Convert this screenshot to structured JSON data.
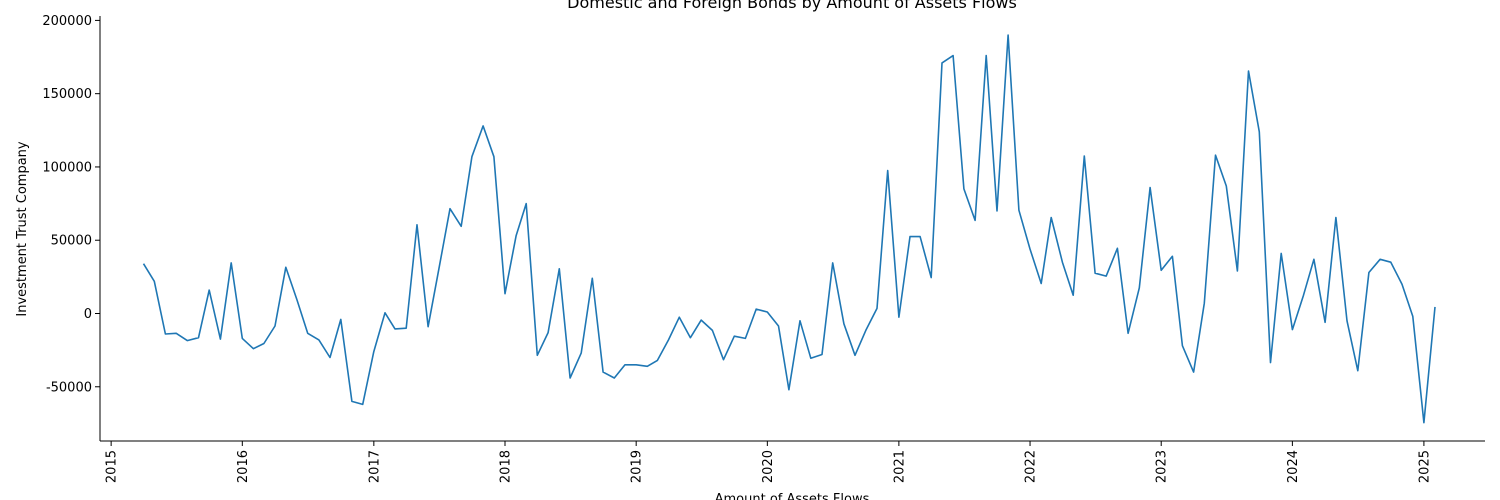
{
  "chart_data": {
    "type": "line",
    "title": "Domestic and Foreign Bonds by Amount of Assets Flows",
    "xlabel": "Amount of Assets Flows",
    "ylabel": "Investment Trust Company",
    "xlim": [
      "2014-12-01",
      "2025-06-20"
    ],
    "ylim": [
      -87000,
      203000
    ],
    "x_ticks": [
      "2015",
      "2016",
      "2017",
      "2018",
      "2019",
      "2020",
      "2021",
      "2022",
      "2023",
      "2024",
      "2025"
    ],
    "y_ticks": [
      -50000,
      0,
      50000,
      100000,
      150000,
      200000
    ],
    "grid": false,
    "line_color": "#1f77b4",
    "series": [
      {
        "x": [
          "2015-04",
          "2015-05",
          "2015-06",
          "2015-07",
          "2015-08",
          "2015-09",
          "2015-10",
          "2015-11",
          "2015-12",
          "2016-01",
          "2016-02",
          "2016-03",
          "2016-04",
          "2016-05",
          "2016-06",
          "2016-07",
          "2016-08",
          "2016-09",
          "2016-10",
          "2016-11",
          "2016-12",
          "2017-01",
          "2017-02",
          "2017-03",
          "2017-04",
          "2017-05",
          "2017-06",
          "2017-07",
          "2017-08",
          "2017-09",
          "2017-10",
          "2017-11",
          "2017-12",
          "2018-01",
          "2018-02",
          "2018-03",
          "2018-04",
          "2018-05",
          "2018-06",
          "2018-07",
          "2018-08",
          "2018-09",
          "2018-10",
          "2018-11",
          "2018-12",
          "2019-01",
          "2019-02",
          "2019-03",
          "2019-04",
          "2019-05",
          "2019-06",
          "2019-07",
          "2019-08",
          "2019-09",
          "2019-10",
          "2019-11",
          "2019-12",
          "2020-01",
          "2020-02",
          "2020-03",
          "2020-04",
          "2020-05",
          "2020-06",
          "2020-07",
          "2020-08",
          "2020-09",
          "2020-10",
          "2020-11",
          "2020-12",
          "2021-01",
          "2021-02",
          "2021-03",
          "2021-04",
          "2021-05",
          "2021-06",
          "2021-07",
          "2021-08",
          "2021-09",
          "2021-10",
          "2021-11",
          "2021-12",
          "2022-01",
          "2022-02",
          "2022-03",
          "2022-04",
          "2022-05",
          "2022-06",
          "2022-07",
          "2022-08",
          "2022-09",
          "2022-10",
          "2022-11",
          "2022-12",
          "2023-01",
          "2023-02",
          "2023-03",
          "2023-04",
          "2023-05",
          "2023-06",
          "2023-07",
          "2023-08",
          "2023-09",
          "2023-10",
          "2023-11",
          "2023-12",
          "2024-01",
          "2024-02",
          "2024-03",
          "2024-04",
          "2024-05",
          "2024-06",
          "2024-07",
          "2024-08",
          "2024-09",
          "2024-10",
          "2024-11",
          "2024-12",
          "2025-01",
          "2025-02"
        ],
        "values": [
          34000,
          22000,
          -14000,
          -13500,
          -18500,
          -16500,
          16000,
          -17500,
          34500,
          -17000,
          -24000,
          -20500,
          -8500,
          31500,
          9500,
          -13500,
          -18000,
          -30000,
          -4000,
          -60000,
          -62000,
          -26000,
          500,
          -10500,
          -10000,
          60500,
          -9000,
          30500,
          71500,
          59500,
          107000,
          128000,
          107000,
          13500,
          53000,
          75000,
          -28500,
          -13000,
          30500,
          -44000,
          -27000,
          24000,
          -40000,
          -44000,
          -35000,
          -35000,
          -36000,
          -32000,
          -18000,
          -2500,
          -16500,
          -4500,
          -11500,
          -31500,
          -15500,
          -17000,
          3000,
          1000,
          -8500,
          -52000,
          -5000,
          -30500,
          -28000,
          34500,
          -7000,
          -28500,
          -11500,
          3500,
          97500,
          -2500,
          52500,
          52500,
          24500,
          171000,
          176000,
          85000,
          63500,
          176000,
          70000,
          190000,
          70500,
          44000,
          20500,
          65500,
          35000,
          12500,
          107500,
          27500,
          25500,
          44500,
          -13500,
          17500,
          86000,
          29500,
          39000,
          -22000,
          -40000,
          7000,
          108000,
          87000,
          29000,
          165500,
          124000,
          -33500,
          41000,
          -11000,
          12500,
          37000,
          -6000,
          65500,
          -5000,
          -39000,
          28000,
          37000,
          35000,
          20000,
          -2000,
          -74500,
          4500
        ]
      }
    ]
  }
}
